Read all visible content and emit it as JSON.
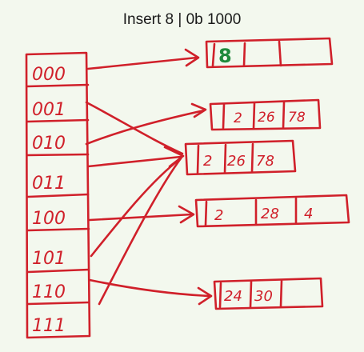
{
  "title": "Insert 8 | 0b 1000",
  "colors": {
    "ink": "#d0202a",
    "highlight": "#1f8a3c",
    "background": "#f3f8ee"
  },
  "directory": {
    "entries": [
      "000",
      "001",
      "010",
      "011",
      "100",
      "101",
      "110",
      "111"
    ]
  },
  "buckets": [
    {
      "id": "bucket-a",
      "values": [
        "8",
        "",
        ""
      ]
    },
    {
      "id": "bucket-b",
      "values": [
        "2",
        "26",
        "78"
      ]
    },
    {
      "id": "bucket-c",
      "values": [
        "2",
        "26",
        "78"
      ]
    },
    {
      "id": "bucket-d",
      "values": [
        "2",
        "28",
        "4"
      ]
    },
    {
      "id": "bucket-e",
      "values": [
        "24",
        "30",
        ""
      ]
    }
  ]
}
